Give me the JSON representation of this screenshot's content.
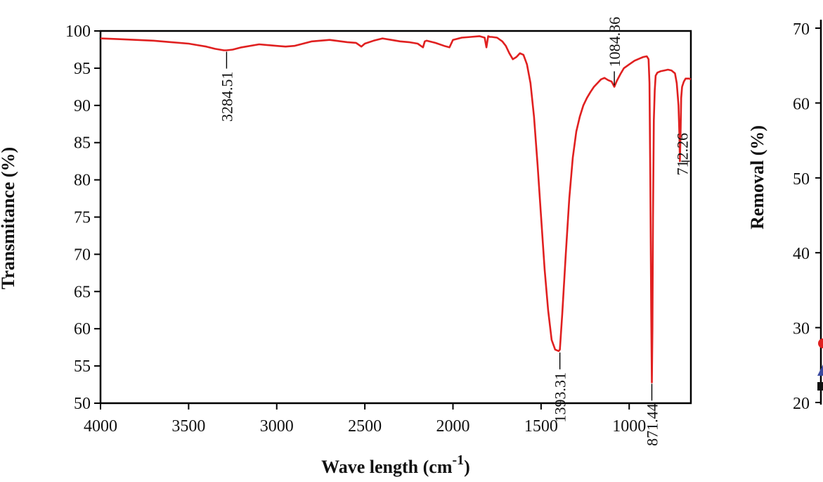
{
  "chart_data": [
    {
      "type": "line",
      "title": "",
      "xlabel_main": "Wave length (cm",
      "xlabel_sup": "-1",
      "xlabel_close": ")",
      "ylabel": "Transmitance (%)",
      "xlim": [
        4000,
        650
      ],
      "x_reversed": true,
      "ylim": [
        50,
        100
      ],
      "xticks": [
        4000,
        3500,
        3000,
        2500,
        2000,
        1500,
        1000
      ],
      "yticks": [
        50,
        55,
        60,
        65,
        70,
        75,
        80,
        85,
        90,
        95,
        100
      ],
      "grid": false,
      "line_color": "#e02020",
      "series": [
        {
          "x": [
            4000,
            3900,
            3800,
            3700,
            3600,
            3500,
            3450,
            3400,
            3350,
            3300,
            3284.51,
            3250,
            3200,
            3100,
            3000,
            2950,
            2900,
            2850,
            2800,
            2700,
            2600,
            2550,
            2520,
            2500,
            2450,
            2400,
            2350,
            2300,
            2250,
            2200,
            2170,
            2160,
            2150,
            2100,
            2050,
            2020,
            2000,
            1950,
            1900,
            1850,
            1820,
            1810,
            1800,
            1790,
            1780,
            1750,
            1720,
            1700,
            1680,
            1660,
            1640,
            1620,
            1600,
            1580,
            1560,
            1540,
            1520,
            1500,
            1480,
            1460,
            1440,
            1420,
            1400,
            1393.31,
            1380,
            1360,
            1340,
            1320,
            1300,
            1280,
            1260,
            1240,
            1220,
            1200,
            1180,
            1160,
            1140,
            1120,
            1100,
            1084.36,
            1070,
            1050,
            1030,
            1000,
            970,
            940,
            920,
            900,
            890,
            885,
            880,
            875,
            871.44,
            868,
            865,
            860,
            855,
            850,
            840,
            820,
            800,
            780,
            760,
            740,
            730,
            720,
            715,
            712.26,
            708,
            705,
            700,
            690,
            680,
            660,
            650
          ],
          "y": [
            99.0,
            98.9,
            98.8,
            98.7,
            98.5,
            98.3,
            98.1,
            97.9,
            97.6,
            97.4,
            97.4,
            97.5,
            97.8,
            98.2,
            98.0,
            97.9,
            98.0,
            98.3,
            98.6,
            98.8,
            98.5,
            98.4,
            97.9,
            98.3,
            98.7,
            99.0,
            98.8,
            98.6,
            98.5,
            98.3,
            97.8,
            98.6,
            98.7,
            98.4,
            98.0,
            97.8,
            98.8,
            99.1,
            99.2,
            99.3,
            99.1,
            97.8,
            99.3,
            99.2,
            99.2,
            99.1,
            98.6,
            98.0,
            97.0,
            96.2,
            96.5,
            97.0,
            96.8,
            95.5,
            93.0,
            88.5,
            82.0,
            75.0,
            68.0,
            62.5,
            58.5,
            57.2,
            57.0,
            57.2,
            62.0,
            70.0,
            77.5,
            83.0,
            86.5,
            88.5,
            90.0,
            91.0,
            91.8,
            92.5,
            93.0,
            93.5,
            93.7,
            93.4,
            93.2,
            92.5,
            93.3,
            94.2,
            95.0,
            95.5,
            96.0,
            96.3,
            96.5,
            96.6,
            96.2,
            93.0,
            80.0,
            62.0,
            52.8,
            60.0,
            75.0,
            88.0,
            92.0,
            94.0,
            94.4,
            94.6,
            94.7,
            94.8,
            94.7,
            94.3,
            93.0,
            90.0,
            86.0,
            82.5,
            87.0,
            91.0,
            92.5,
            93.2,
            93.6,
            93.6,
            93.5
          ]
        }
      ],
      "annotations": [
        {
          "text": "3284.51",
          "x": 3284.51,
          "y": 97.4
        },
        {
          "text": "1393.31",
          "x": 1393.31,
          "y": 57.0
        },
        {
          "text": "1084.36",
          "x": 1084.36,
          "y": 92.5
        },
        {
          "text": "871.44",
          "x": 871.44,
          "y": 52.8
        },
        {
          "text": "712.26",
          "x": 712.26,
          "y": 82.5
        }
      ]
    },
    {
      "type": "scatter",
      "partial": true,
      "ylabel": "Removal (%)",
      "yticks": [
        20,
        30,
        40,
        50,
        60,
        70
      ],
      "ylim": [
        20,
        73
      ]
    }
  ]
}
